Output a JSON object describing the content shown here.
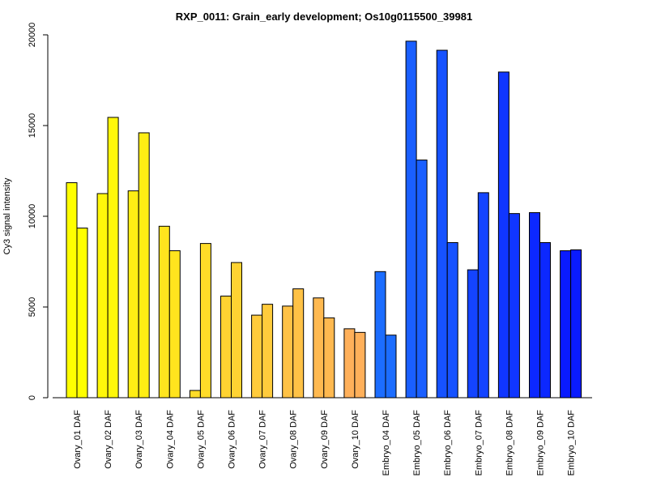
{
  "chart_data": {
    "type": "bar",
    "title": "RXP_0011: Grain_early development; Os10g0115500_39981",
    "xlabel": "",
    "ylabel": "Cy3 signal intensity",
    "ylim": [
      0,
      20000
    ],
    "yticks": [
      0,
      5000,
      10000,
      15000,
      20000
    ],
    "categories": [
      "Ovary_01 DAF",
      "Ovary_02 DAF",
      "Ovary_03 DAF",
      "Ovary_04 DAF",
      "Ovary_05 DAF",
      "Ovary_06 DAF",
      "Ovary_07 DAF",
      "Ovary_08 DAF",
      "Ovary_09 DAF",
      "Ovary_10 DAF",
      "Embryo_04 DAF",
      "Embryo_05 DAF",
      "Embryo_06 DAF",
      "Embryo_07 DAF",
      "Embryo_08 DAF",
      "Embryo_09 DAF",
      "Embryo_10 DAF"
    ],
    "series": [
      {
        "values": [
          11850,
          11250,
          11400,
          9450,
          400,
          5600,
          4550,
          5050,
          5500,
          3800,
          6950,
          19650,
          19150,
          7050,
          17950,
          10200,
          8100
        ]
      },
      {
        "values": [
          9350,
          15450,
          14600,
          8100,
          8500,
          7450,
          5150,
          6000,
          4400,
          3600,
          3450,
          13100,
          8550,
          11300,
          10150,
          8550,
          8150
        ]
      }
    ],
    "bar_colors": [
      "#ffff00",
      "#fff70a",
      "#ffee14",
      "#ffe41e",
      "#ffdc28",
      "#ffd332",
      "#ffcb3c",
      "#ffc246",
      "#ffb950",
      "#ffb05a",
      "#1c6dff",
      "#1a5fff",
      "#1652ff",
      "#1444ff",
      "#1036ff",
      "#0c28ff",
      "#0a1bff"
    ],
    "grid": false,
    "legend": "none"
  }
}
